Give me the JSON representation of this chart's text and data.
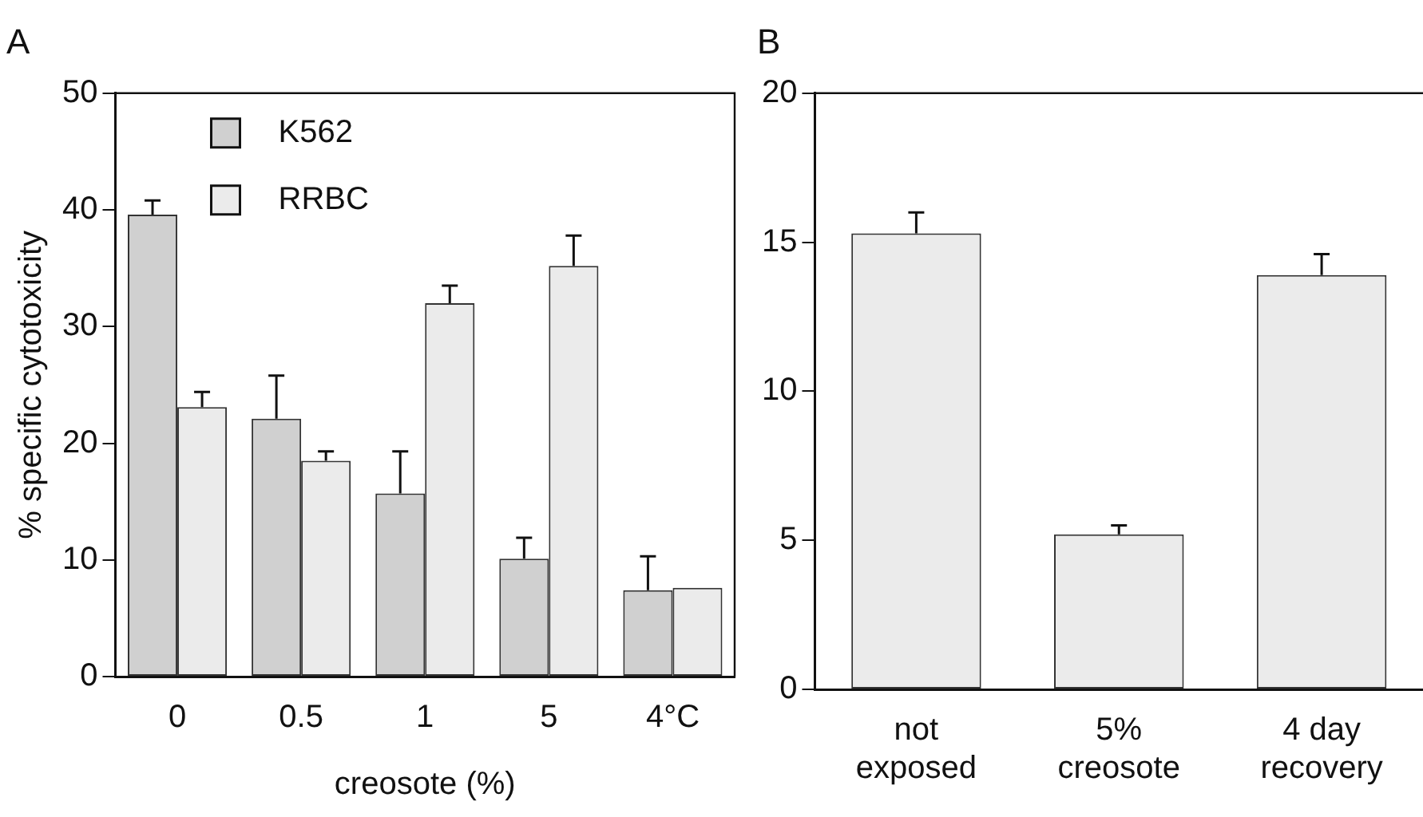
{
  "chart_data": [
    {
      "type": "bar",
      "title": "A",
      "xlabel": "creosote (%)",
      "ylabel": "% specific cytotoxicity",
      "categories": [
        "0",
        "0.5",
        "1",
        "5",
        "4°C"
      ],
      "series": [
        {
          "name": "K562",
          "color": "#d0d0d0",
          "values": [
            39.6,
            22.1,
            15.7,
            10.1,
            7.4
          ],
          "errors": [
            [
              39.6,
              40.8
            ],
            [
              22.1,
              25.8
            ],
            [
              15.7,
              19.3
            ],
            [
              10.1,
              11.9
            ],
            [
              7.4,
              10.3
            ]
          ]
        },
        {
          "name": "RRBC",
          "color": "#ebebeb",
          "values": [
            23.1,
            18.5,
            32.0,
            35.2,
            7.6
          ],
          "errors": [
            [
              23.1,
              24.4
            ],
            [
              18.5,
              19.3
            ],
            [
              32.0,
              33.5
            ],
            [
              35.2,
              37.8
            ],
            null
          ]
        }
      ],
      "ylim": [
        0,
        50
      ],
      "yticks": [
        0,
        10,
        20,
        30,
        40,
        50
      ],
      "grid": false,
      "legend": "top left"
    },
    {
      "type": "bar",
      "title": "B",
      "categories": [
        "not\nexposed",
        "5%\ncreosote",
        "4 day\nrecovery"
      ],
      "series": [
        {
          "color": "#ebebeb",
          "values": [
            15.3,
            5.2,
            13.9
          ],
          "errors": [
            [
              15.3,
              16.0
            ],
            [
              5.2,
              5.5
            ],
            [
              13.9,
              14.6
            ]
          ]
        }
      ],
      "ylim": [
        0,
        20
      ],
      "yticks": [
        0,
        5,
        10,
        15,
        20
      ],
      "grid": false
    }
  ]
}
